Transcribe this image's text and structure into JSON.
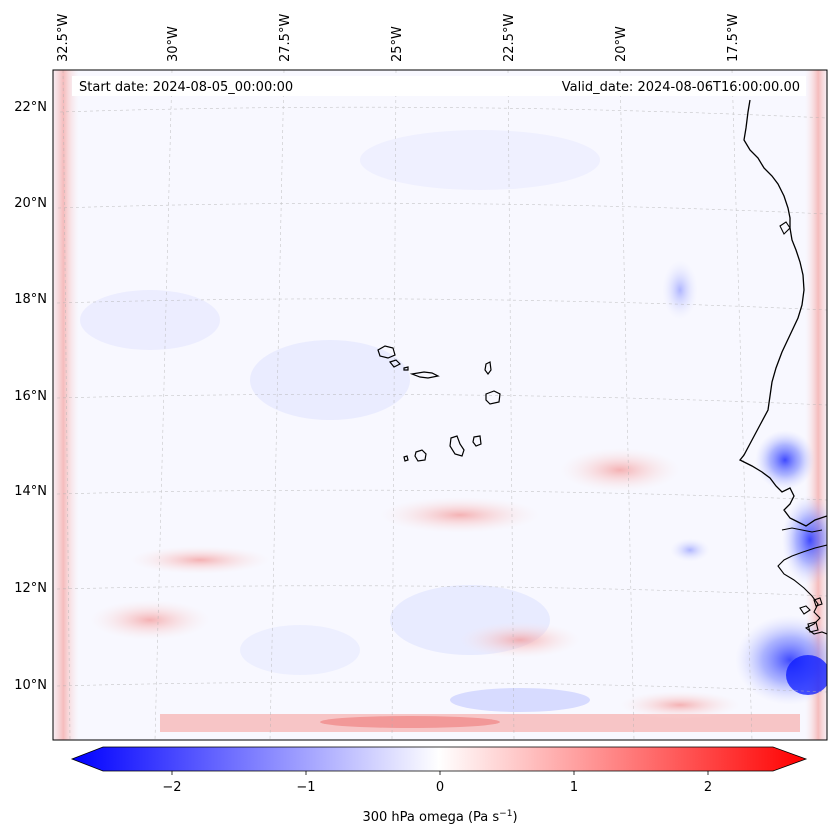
{
  "header": {
    "start_date": "Start date: 2024-08-05_00:00:00",
    "valid_date": "Valid_date: 2024-08-06T16:00:00.00"
  },
  "longitude_ticks": [
    "32.5°W",
    "30°W",
    "27.5°W",
    "25°W",
    "22.5°W",
    "20°W",
    "17.5°W"
  ],
  "latitude_ticks": [
    "22°N",
    "20°N",
    "18°N",
    "16°N",
    "14°N",
    "12°N",
    "10°N"
  ],
  "colorbar": {
    "ticks": [
      "−2",
      "−1",
      "0",
      "1",
      "2"
    ],
    "label_main": "300 hPa omega (Pa s",
    "label_sup": "−1",
    "label_end": ")",
    "range": [
      -2.6,
      2.6
    ],
    "colormap": "bwr",
    "extend": "both"
  },
  "colors": {
    "negative": "#0000ff",
    "neutral": "#ffffff",
    "positive": "#ff0000",
    "coastline": "#000000",
    "gridline": "#b0b0b0"
  }
}
